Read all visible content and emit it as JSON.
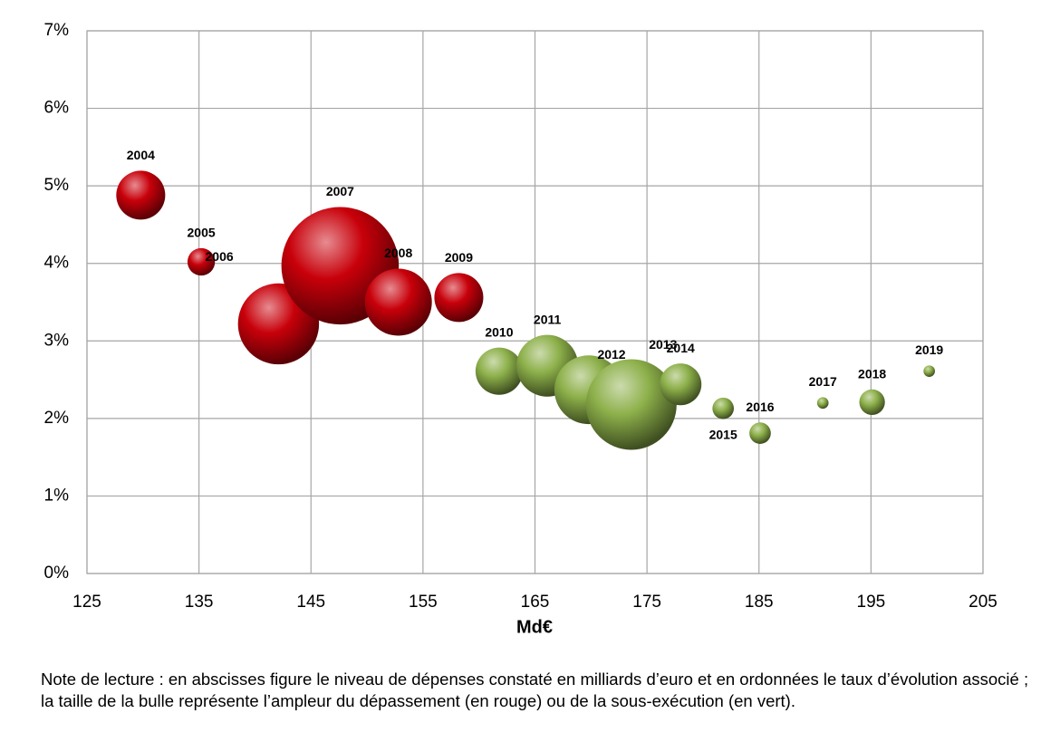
{
  "chart_data": {
    "type": "bubble",
    "x_label": "Md€",
    "xlim": [
      125,
      205
    ],
    "xticks": [
      125,
      135,
      145,
      155,
      165,
      175,
      185,
      195,
      205
    ],
    "ylim": [
      0,
      7
    ],
    "yticks": [
      {
        "value": 0,
        "label": "0%"
      },
      {
        "value": 1,
        "label": "1%"
      },
      {
        "value": 2,
        "label": "2%"
      },
      {
        "value": 3,
        "label": "3%"
      },
      {
        "value": 4,
        "label": "4%"
      },
      {
        "value": 5,
        "label": "5%"
      },
      {
        "value": 6,
        "label": "6%"
      },
      {
        "value": 7,
        "label": "7%"
      }
    ],
    "grid": true,
    "series": [
      {
        "color": "#c8000a",
        "labels": [
          "2004",
          "2005",
          "2006",
          "2007",
          "2008",
          "2009"
        ],
        "x": [
          129.8,
          135.2,
          142.1,
          147.6,
          152.8,
          158.2
        ],
        "values": [
          4.88,
          4.02,
          3.22,
          3.97,
          3.5,
          3.56
        ],
        "sizes": [
          7.3,
          2.3,
          20,
          42,
          13.7,
          7.3
        ]
      },
      {
        "color": "#8db04a",
        "labels": [
          "2010",
          "2011",
          "2012",
          "2013",
          "2014",
          "2015",
          "2016",
          "2017",
          "2018",
          "2019"
        ],
        "x": [
          161.8,
          166.1,
          169.8,
          173.6,
          178.0,
          181.8,
          185.1,
          190.7,
          195.1,
          200.2
        ],
        "values": [
          2.61,
          2.68,
          2.37,
          2.18,
          2.44,
          2.13,
          1.81,
          2.2,
          2.21,
          2.61
        ],
        "sizes": [
          6.8,
          11.6,
          14.4,
          25,
          5.3,
          1.4,
          1.4,
          0.4,
          2,
          0.4
        ]
      }
    ]
  },
  "note": "Note de lecture : en abscisses figure le niveau de dépenses constaté en milliards d’euro et en ordonnées le taux d’évolution associé ; la taille de la bulle représente l’ampleur du dépassement (en rouge) ou de la sous-exécution (en vert)."
}
